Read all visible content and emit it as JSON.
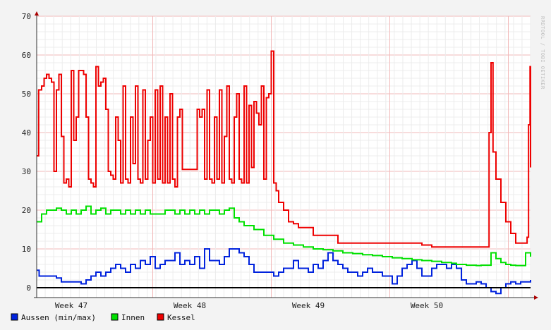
{
  "chart_data": {
    "type": "line",
    "watermark": "RRDTOOL / TOBI OETIKER",
    "ylim": [
      0,
      70
    ],
    "yticks": [
      0,
      10,
      20,
      30,
      40,
      50,
      60,
      70
    ],
    "xlim": [
      0,
      100
    ],
    "week_labels": [
      {
        "label": "Week 47",
        "x": 7
      },
      {
        "label": "Week 48",
        "x": 31
      },
      {
        "label": "Week 49",
        "x": 55
      },
      {
        "label": "Week 50",
        "x": 79
      }
    ],
    "grid": true,
    "legend_position": "bottom-left",
    "series": [
      {
        "name": "Aussen (min/max)",
        "color": "#0022dd",
        "points": [
          [
            0,
            4.5
          ],
          [
            0.5,
            3
          ],
          [
            2,
            3
          ],
          [
            4,
            2.5
          ],
          [
            5,
            1.5
          ],
          [
            7,
            1.5
          ],
          [
            9,
            1
          ],
          [
            10,
            2
          ],
          [
            11,
            3
          ],
          [
            12,
            4
          ],
          [
            13,
            3
          ],
          [
            14,
            4
          ],
          [
            15,
            5
          ],
          [
            16,
            6
          ],
          [
            17,
            5
          ],
          [
            18,
            4
          ],
          [
            19,
            6
          ],
          [
            20,
            5
          ],
          [
            21,
            7
          ],
          [
            22,
            6
          ],
          [
            23,
            8
          ],
          [
            24,
            5
          ],
          [
            25,
            6
          ],
          [
            26,
            7
          ],
          [
            27,
            7
          ],
          [
            28,
            9
          ],
          [
            29,
            6
          ],
          [
            30,
            7
          ],
          [
            31,
            6
          ],
          [
            32,
            8
          ],
          [
            33,
            5
          ],
          [
            34,
            10
          ],
          [
            35,
            7
          ],
          [
            36,
            7
          ],
          [
            37,
            6
          ],
          [
            38,
            8
          ],
          [
            39,
            10
          ],
          [
            40,
            10
          ],
          [
            41,
            9
          ],
          [
            42,
            8
          ],
          [
            43,
            6
          ],
          [
            44,
            4
          ],
          [
            45,
            4
          ],
          [
            46,
            4
          ],
          [
            47,
            4
          ],
          [
            48,
            3
          ],
          [
            49,
            4
          ],
          [
            50,
            5
          ],
          [
            51,
            5
          ],
          [
            52,
            7
          ],
          [
            53,
            5
          ],
          [
            54,
            5
          ],
          [
            55,
            4
          ],
          [
            56,
            6
          ],
          [
            57,
            5
          ],
          [
            58,
            7
          ],
          [
            59,
            9
          ],
          [
            60,
            7
          ],
          [
            61,
            6
          ],
          [
            62,
            5
          ],
          [
            63,
            4
          ],
          [
            64,
            4
          ],
          [
            65,
            3
          ],
          [
            66,
            4
          ],
          [
            67,
            5
          ],
          [
            68,
            4
          ],
          [
            69,
            4
          ],
          [
            70,
            3
          ],
          [
            71,
            3
          ],
          [
            72,
            1
          ],
          [
            73,
            3
          ],
          [
            74,
            5
          ],
          [
            75,
            6
          ],
          [
            76,
            7
          ],
          [
            77,
            5
          ],
          [
            78,
            3
          ],
          [
            79,
            3
          ],
          [
            80,
            5
          ],
          [
            81,
            6
          ],
          [
            82,
            6
          ],
          [
            83,
            5
          ],
          [
            84,
            6
          ],
          [
            85,
            5
          ],
          [
            86,
            2
          ],
          [
            87,
            1
          ],
          [
            88,
            1
          ],
          [
            89,
            1.5
          ],
          [
            90,
            1
          ],
          [
            91,
            0
          ],
          [
            92,
            -1
          ],
          [
            93,
            -1.5
          ],
          [
            94,
            0
          ],
          [
            95,
            1
          ],
          [
            96,
            1.5
          ],
          [
            97,
            1
          ],
          [
            98,
            1.5
          ],
          [
            99,
            1.5
          ],
          [
            100,
            2
          ]
        ]
      },
      {
        "name": "Innen",
        "color": "#00e000",
        "points": [
          [
            0,
            17
          ],
          [
            1,
            19
          ],
          [
            2,
            20
          ],
          [
            4,
            20.5
          ],
          [
            5,
            20
          ],
          [
            6,
            19
          ],
          [
            7,
            20
          ],
          [
            8,
            19
          ],
          [
            9,
            20
          ],
          [
            10,
            21
          ],
          [
            11,
            19
          ],
          [
            12,
            20
          ],
          [
            13,
            20.5
          ],
          [
            14,
            19
          ],
          [
            15,
            20
          ],
          [
            16,
            20
          ],
          [
            17,
            19
          ],
          [
            18,
            20
          ],
          [
            19,
            19
          ],
          [
            20,
            20
          ],
          [
            21,
            19
          ],
          [
            22,
            20
          ],
          [
            23,
            19
          ],
          [
            24,
            19
          ],
          [
            25,
            19
          ],
          [
            26,
            20
          ],
          [
            27,
            20
          ],
          [
            28,
            19
          ],
          [
            29,
            20
          ],
          [
            30,
            19
          ],
          [
            31,
            20
          ],
          [
            32,
            19
          ],
          [
            33,
            20
          ],
          [
            34,
            19
          ],
          [
            35,
            20
          ],
          [
            36,
            20
          ],
          [
            37,
            19
          ],
          [
            38,
            20
          ],
          [
            39,
            20.5
          ],
          [
            40,
            18
          ],
          [
            41,
            17
          ],
          [
            42,
            16
          ],
          [
            44,
            15
          ],
          [
            46,
            13.5
          ],
          [
            48,
            12.5
          ],
          [
            50,
            11.5
          ],
          [
            52,
            11
          ],
          [
            54,
            10.5
          ],
          [
            56,
            10
          ],
          [
            58,
            9.8
          ],
          [
            60,
            9.5
          ],
          [
            62,
            9
          ],
          [
            64,
            8.8
          ],
          [
            66,
            8.5
          ],
          [
            68,
            8.3
          ],
          [
            70,
            8
          ],
          [
            72,
            7.7
          ],
          [
            74,
            7.5
          ],
          [
            76,
            7.2
          ],
          [
            78,
            7
          ],
          [
            80,
            6.8
          ],
          [
            82,
            6.5
          ],
          [
            84,
            6.3
          ],
          [
            85,
            6
          ],
          [
            86,
            6
          ],
          [
            87,
            5.8
          ],
          [
            88,
            5.8
          ],
          [
            89,
            5.7
          ],
          [
            90,
            5.8
          ],
          [
            91,
            5.8
          ],
          [
            92,
            9
          ],
          [
            93,
            7.5
          ],
          [
            94,
            6.5
          ],
          [
            95,
            6
          ],
          [
            96,
            5.8
          ],
          [
            97,
            5.7
          ],
          [
            98,
            5.7
          ],
          [
            99,
            9
          ],
          [
            100,
            8
          ]
        ]
      },
      {
        "name": "Kessel",
        "color": "#ee0000",
        "points": [
          [
            0,
            34
          ],
          [
            0.4,
            51
          ],
          [
            1,
            52
          ],
          [
            1.5,
            54
          ],
          [
            2,
            55
          ],
          [
            2.5,
            54
          ],
          [
            3,
            53
          ],
          [
            3.5,
            30
          ],
          [
            4,
            51
          ],
          [
            4.5,
            55
          ],
          [
            5,
            39
          ],
          [
            5.5,
            27
          ],
          [
            6,
            28
          ],
          [
            6.5,
            26
          ],
          [
            7,
            56
          ],
          [
            7.5,
            38
          ],
          [
            8,
            44
          ],
          [
            8.5,
            56
          ],
          [
            9,
            56
          ],
          [
            9.5,
            55
          ],
          [
            10,
            44
          ],
          [
            10.5,
            28
          ],
          [
            11,
            27
          ],
          [
            11.5,
            26
          ],
          [
            12,
            57
          ],
          [
            12.5,
            52
          ],
          [
            13,
            53
          ],
          [
            13.5,
            54
          ],
          [
            14,
            46
          ],
          [
            14.5,
            30
          ],
          [
            15,
            29
          ],
          [
            15.5,
            28
          ],
          [
            16,
            44
          ],
          [
            16.5,
            38
          ],
          [
            17,
            27
          ],
          [
            17.5,
            52
          ],
          [
            18,
            28
          ],
          [
            18.5,
            27
          ],
          [
            19,
            44
          ],
          [
            19.5,
            32
          ],
          [
            20,
            52
          ],
          [
            20.5,
            28
          ],
          [
            21,
            27
          ],
          [
            21.5,
            51
          ],
          [
            22,
            28
          ],
          [
            22.5,
            38
          ],
          [
            23,
            44
          ],
          [
            23.5,
            27
          ],
          [
            24,
            51
          ],
          [
            24.5,
            28
          ],
          [
            25,
            52
          ],
          [
            25.5,
            27
          ],
          [
            26,
            44
          ],
          [
            26.5,
            27
          ],
          [
            27,
            50
          ],
          [
            27.5,
            28
          ],
          [
            28,
            26
          ],
          [
            28.5,
            44
          ],
          [
            29,
            46
          ],
          [
            29.5,
            30.5
          ],
          [
            30,
            30.5
          ],
          [
            31,
            30.5
          ],
          [
            32,
            30.5
          ],
          [
            32.5,
            46
          ],
          [
            33,
            44
          ],
          [
            33.5,
            46
          ],
          [
            34,
            28
          ],
          [
            34.5,
            51
          ],
          [
            35,
            28
          ],
          [
            35.5,
            27
          ],
          [
            36,
            44
          ],
          [
            36.5,
            28
          ],
          [
            37,
            51
          ],
          [
            37.5,
            27
          ],
          [
            38,
            39
          ],
          [
            38.5,
            52
          ],
          [
            39,
            28
          ],
          [
            39.5,
            27
          ],
          [
            40,
            44
          ],
          [
            40.5,
            50
          ],
          [
            41,
            28
          ],
          [
            41.5,
            27
          ],
          [
            42,
            52
          ],
          [
            42.5,
            27
          ],
          [
            43,
            47
          ],
          [
            43.5,
            31
          ],
          [
            44,
            48
          ],
          [
            44.5,
            45
          ],
          [
            45,
            42
          ],
          [
            45.5,
            52
          ],
          [
            46,
            28
          ],
          [
            46.5,
            49
          ],
          [
            47,
            50
          ],
          [
            47.5,
            61
          ],
          [
            48,
            27
          ],
          [
            48.5,
            25
          ],
          [
            49,
            22
          ],
          [
            50,
            20
          ],
          [
            51,
            17
          ],
          [
            52,
            16.5
          ],
          [
            53,
            15.5
          ],
          [
            55,
            15.5
          ],
          [
            56,
            13.5
          ],
          [
            58,
            13.5
          ],
          [
            60,
            13.5
          ],
          [
            61,
            11.5
          ],
          [
            63,
            11.5
          ],
          [
            66,
            11.5
          ],
          [
            69,
            11.5
          ],
          [
            72,
            11.5
          ],
          [
            75,
            11.5
          ],
          [
            78,
            11
          ],
          [
            79,
            11
          ],
          [
            80,
            10.5
          ],
          [
            82,
            10.5
          ],
          [
            84,
            10.5
          ],
          [
            86,
            10.5
          ],
          [
            88,
            10.5
          ],
          [
            90,
            10.5
          ],
          [
            91.3,
            10.5
          ],
          [
            91.6,
            40
          ],
          [
            92,
            58
          ],
          [
            92.4,
            35
          ],
          [
            93,
            28
          ],
          [
            94,
            22
          ],
          [
            95,
            17
          ],
          [
            96,
            14
          ],
          [
            97,
            11.5
          ],
          [
            98,
            11.5
          ],
          [
            99,
            11.5
          ],
          [
            99.3,
            13
          ],
          [
            99.6,
            42
          ],
          [
            99.9,
            57
          ],
          [
            100,
            34
          ],
          [
            100.3,
            31
          ]
        ]
      }
    ]
  }
}
